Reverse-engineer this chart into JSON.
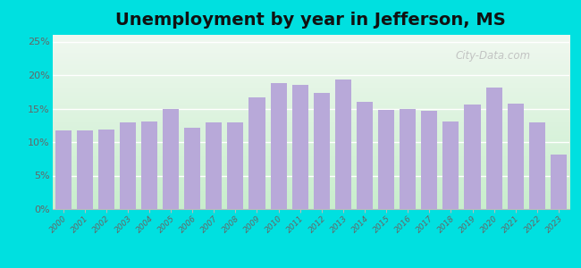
{
  "title": "Unemployment by year in Jefferson, MS",
  "years": [
    2000,
    2001,
    2002,
    2003,
    2004,
    2005,
    2006,
    2007,
    2008,
    2009,
    2010,
    2011,
    2012,
    2013,
    2014,
    2015,
    2016,
    2017,
    2018,
    2019,
    2020,
    2021,
    2022,
    2023
  ],
  "values": [
    11.8,
    11.7,
    11.9,
    13.0,
    13.1,
    14.9,
    12.1,
    13.0,
    13.0,
    16.7,
    18.8,
    18.6,
    17.3,
    19.4,
    16.0,
    14.8,
    14.9,
    14.7,
    13.1,
    15.6,
    18.1,
    15.8,
    13.0,
    8.2
  ],
  "bar_color": "#b8a9d9",
  "outer_background": "#00e0e0",
  "title_fontsize": 14,
  "ylim": [
    0,
    26
  ],
  "yticks": [
    0,
    5,
    10,
    15,
    20,
    25
  ],
  "ytick_labels": [
    "0%",
    "5%",
    "10%",
    "15%",
    "20%",
    "25%"
  ],
  "watermark_text": "City-Data.com",
  "gradient_bottom": "#c8eecc",
  "gradient_top": "#f0f8f0"
}
